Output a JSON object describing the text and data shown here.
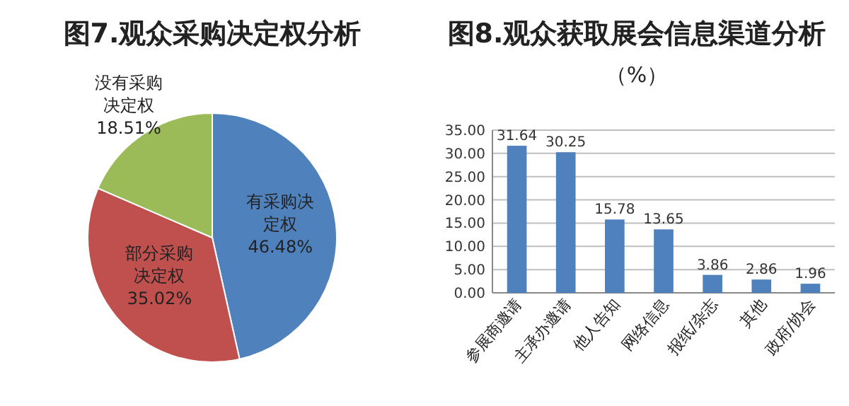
{
  "chart_data": [
    {
      "type": "pie",
      "title": "图7.观众采购决定权分析",
      "categories": [
        "有采购决定权",
        "部分采购决定权",
        "没有采购决定权"
      ],
      "values": [
        46.48,
        35.02,
        18.51
      ],
      "colors": [
        "#4f81bd",
        "#c0504d",
        "#9bbb59"
      ],
      "value_labels": [
        "46.48%",
        "35.02%",
        "18.51%"
      ]
    },
    {
      "type": "bar",
      "title": "图8.观众获取展会信息渠道分析",
      "subtitle": "（%）",
      "categories": [
        "参展商邀请",
        "主承办邀请",
        "他人告知",
        "网络信息",
        "报纸/杂志",
        "其他",
        "政府/协会"
      ],
      "values": [
        31.64,
        30.25,
        15.78,
        13.65,
        3.86,
        2.86,
        1.96
      ],
      "color": "#4f81bd",
      "ylim": [
        0,
        35
      ],
      "yticks": [
        {
          "value": 0,
          "label": "0.00"
        },
        {
          "value": 5,
          "label": "5.00"
        },
        {
          "value": 10,
          "label": "10.00"
        },
        {
          "value": 15,
          "label": "15.00"
        },
        {
          "value": 20,
          "label": "20.00"
        },
        {
          "value": 25,
          "label": "25.00"
        },
        {
          "value": 30,
          "label": "30.00"
        },
        {
          "value": 35,
          "label": "35.00"
        }
      ],
      "grid": "y",
      "data_labels": true
    }
  ]
}
